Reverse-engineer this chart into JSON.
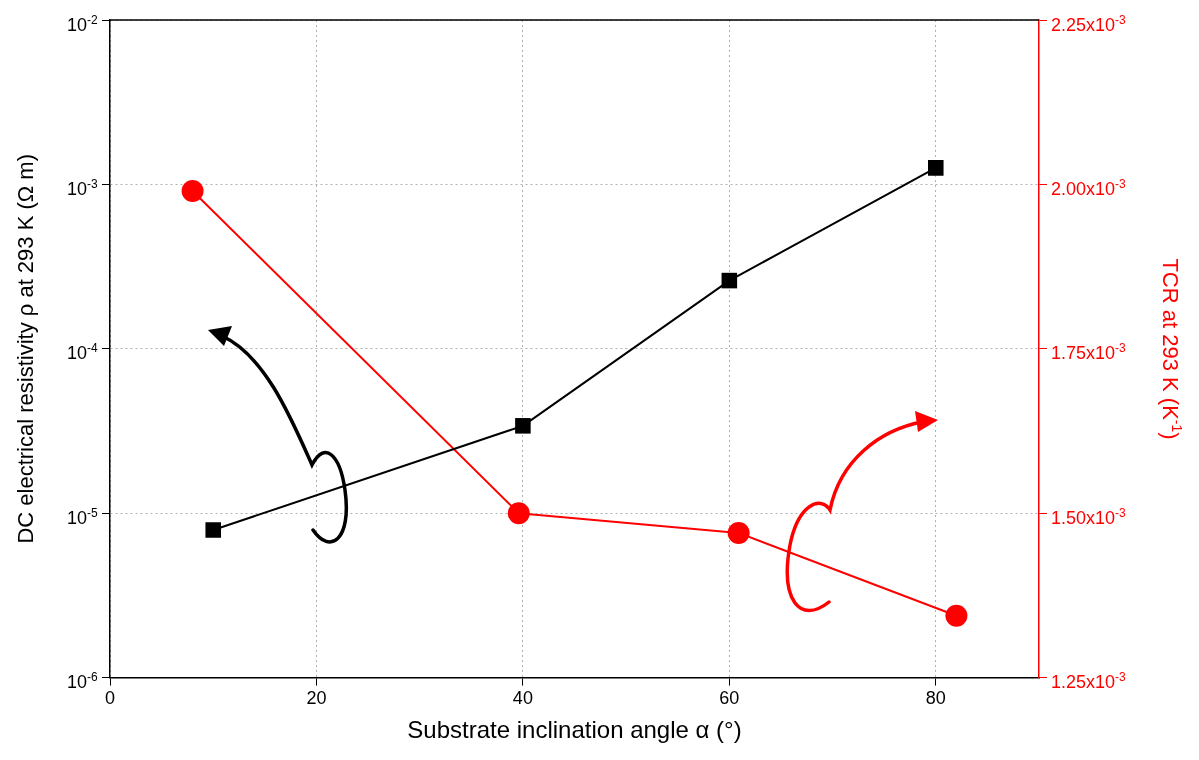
{
  "chart_data": {
    "type": "line",
    "xlabel": "Substrate inclination angle α (°)",
    "ylabel": "DC electrical resistivity ρ at 293 K (Ω m)",
    "y2label": "TCR at 293 K (K$^{-1}$)",
    "xlim": [
      0,
      90
    ],
    "xticks": [
      0,
      20,
      40,
      60,
      80
    ],
    "ylim": [
      1e-06,
      0.01
    ],
    "yticks": [
      {
        "value": 1e-06,
        "label": "10$^{-6}$"
      },
      {
        "value": 1e-05,
        "label": "10$^{-5}$"
      },
      {
        "value": 0.0001,
        "label": "10$^{-4}$"
      },
      {
        "value": 0.001,
        "label": "10$^{-3}$"
      },
      {
        "value": 0.01,
        "label": "10$^{-2}$"
      }
    ],
    "y2lim": [
      0.00125,
      0.00225
    ],
    "y2ticks": [
      {
        "value": 0.00125,
        "label": "1.25x10$^{-3}$"
      },
      {
        "value": 0.0015,
        "label": "1.50x10$^{-3}$"
      },
      {
        "value": 0.00175,
        "label": "1.75x10$^{-3}$"
      },
      {
        "value": 0.002,
        "label": "2.00x10$^{-3}$"
      },
      {
        "value": 0.00225,
        "label": "2.25x10$^{-3}$"
      }
    ],
    "log": "y",
    "grid": true,
    "legend": false,
    "line_style": "solid",
    "series": [
      {
        "color": "#000000",
        "marker": "square",
        "x": [
          10,
          40,
          60,
          80
        ],
        "values": [
          7.9e-06,
          3.4e-05,
          0.00026,
          0.00126
        ]
      },
      {
        "color": "#ff0000",
        "marker": "circle",
        "axis": "y2",
        "x": [
          8,
          39.6,
          60.9,
          82
        ],
        "values": [
          0.00199,
          0.0015,
          0.00147,
          0.001344
        ]
      }
    ]
  }
}
